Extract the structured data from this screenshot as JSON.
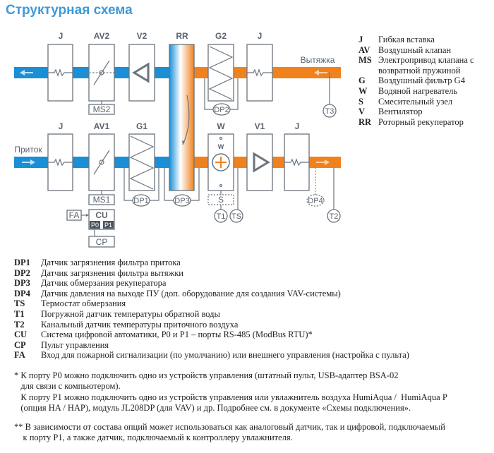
{
  "title": "Структурная схема",
  "diagram": {
    "top_labels": [
      "J",
      "AV2",
      "V2",
      "RR",
      "G2",
      "J"
    ],
    "bottom_labels": [
      "J",
      "AV1",
      "G1",
      "W",
      "V1",
      "J"
    ],
    "exhaust_label": "Вытяжка",
    "supply_label": "Приток",
    "sensors": {
      "ms2": "MS2",
      "ms1": "MS1",
      "dp1": "DP1",
      "dp2": "DP2",
      "dp3": "DP3",
      "dp4": "DP4",
      "t1": "T1",
      "t2": "T2",
      "t3": "T3",
      "ts": "TS",
      "s": "S",
      "w_small": "W",
      "fa": "FA",
      "cu": "CU",
      "p0": "P0",
      "p1": "P1",
      "cp": "CP"
    },
    "colors": {
      "supply": "#1a8fd6",
      "exhaust": "#f0821e",
      "frame": "#6b747d",
      "title": "#3d9ad6"
    }
  },
  "legend_right": [
    {
      "abbr": "J",
      "text": "Гибкая вставка"
    },
    {
      "abbr": "AV",
      "text": "Воздушный клапан"
    },
    {
      "abbr": "MS",
      "text": "Электропривод клапана с"
    },
    {
      "abbr": "",
      "text": "возвратной пружиной"
    },
    {
      "abbr": "G",
      "text": "Воздушный фильтр G4"
    },
    {
      "abbr": "W",
      "text": "Водяной нагреватель"
    },
    {
      "abbr": "S",
      "text": "Смесительный узел"
    },
    {
      "abbr": "V",
      "text": "Вентилятор"
    },
    {
      "abbr": "RR",
      "text": "Роторный рекуператор"
    }
  ],
  "legend_bottom": [
    {
      "abbr": "DP1",
      "text": "Датчик загрязнения фильтра притока"
    },
    {
      "abbr": "DP2",
      "text": "Датчик загрязнения фильтра вытяжки"
    },
    {
      "abbr": "DP3",
      "text": "Датчик обмерзания рекуператора"
    },
    {
      "abbr": "DP4",
      "text": "Датчик давления на выходе ПУ (доп. оборудование для создания VAV-системы)"
    },
    {
      "abbr": "TS",
      "text": "Термостат обмерзания"
    },
    {
      "abbr": "T1",
      "text": "Погружной датчик температуры обратной воды"
    },
    {
      "abbr": "T2",
      "text": "Канальный датчик температуры приточного воздуха"
    },
    {
      "abbr": "CU",
      "text": "Система цифровой автоматики, P0 и P1 – порты RS-485 (ModBus RTU)*"
    },
    {
      "abbr": "CP",
      "text": "Пульт управления"
    },
    {
      "abbr": "FA",
      "text": "Вход для пожарной сигнализации (по умолчанию) или внешнего управления (настройка с пульта)"
    }
  ],
  "footnotes": [
    "* К порту P0 можно подключить одно из устройств управления (штатный пульт, USB-адаптер BSA-02",
    "   для связи с компьютером).",
    "   К порту P1 можно подключить одно из устройств управления или увлажнитель воздуха HumiAqua /  HumiAqua P",
    "   (опция HA / HAP), модуль JL208DP (для VAV) и др. Подробнее см. в документе «Схемы подключения».",
    "** В зависимости от состава опций может использоваться как аналоговый датчик, так и цифровой, подключаемый",
    "    к порту P1, а также датчик, подключаемый к контроллеру увлажнителя."
  ]
}
